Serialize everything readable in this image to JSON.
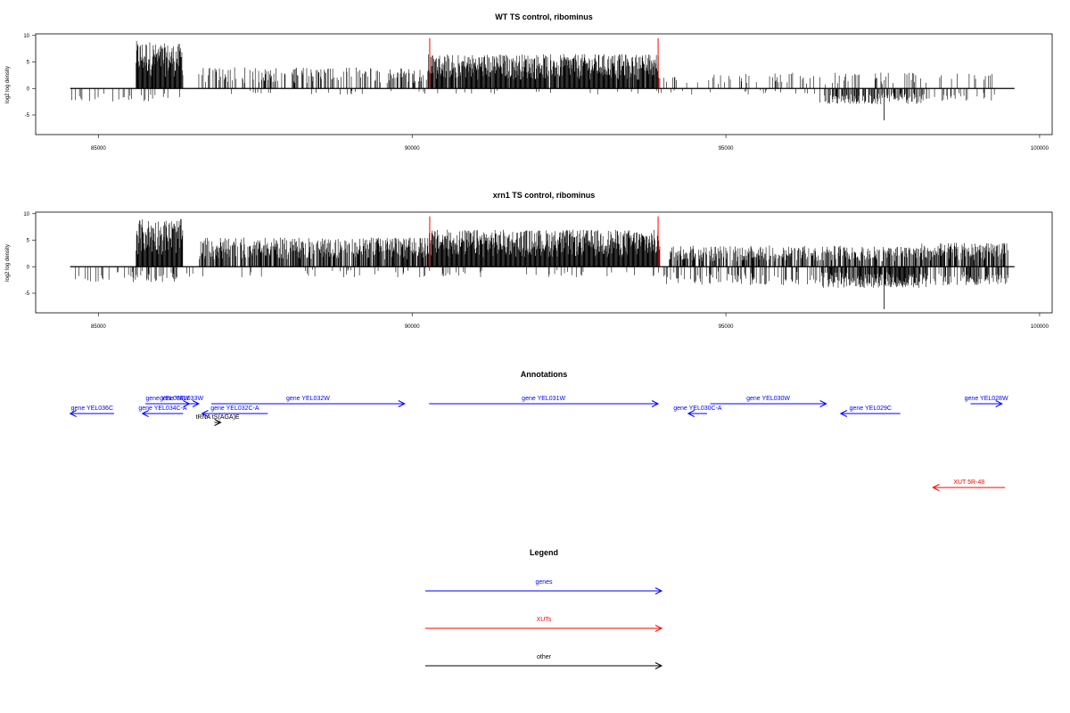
{
  "chart_data": [
    {
      "type": "bar",
      "title": "WT TS control, ribominus",
      "ylabel": "log2 log density",
      "xlim": [
        84000,
        100200
      ],
      "ylim": [
        -8.7,
        10.3
      ],
      "x_ticks": [
        85000,
        90000,
        95000,
        100000
      ],
      "x_tick_labels": [
        "85000",
        "90000",
        "95000",
        "100000"
      ],
      "y_ticks": [
        -5,
        0,
        5,
        10
      ],
      "y_tick_labels": [
        "-5",
        "0",
        "5",
        "10"
      ],
      "baseline": {
        "from": 84550,
        "to": 99600,
        "value": 0
      },
      "marker_lines": {
        "color": "#ff0000",
        "x": [
          90280,
          93920
        ],
        "ymax": 9.5
      },
      "series": [
        {
          "values_plus": [
            {
              "from": 85600,
              "to": 85900,
              "max": 9.0,
              "density": 1.0
            },
            {
              "from": 85900,
              "to": 86350,
              "max": 8.5,
              "density": 1.0
            },
            {
              "from": 86600,
              "to": 90250,
              "max": 4.0,
              "density": 0.35
            },
            {
              "from": 90250,
              "to": 93950,
              "max": 6.5,
              "density": 0.95
            },
            {
              "from": 94000,
              "to": 99300,
              "max": 3.0,
              "density": 0.12
            }
          ],
          "values_minus": [
            {
              "from": 84550,
              "to": 86300,
              "max": 2.5,
              "density": 0.12
            },
            {
              "from": 87000,
              "to": 96500,
              "max": 1.2,
              "density": 0.05
            },
            {
              "from": 96500,
              "to": 98200,
              "max": 3.0,
              "density": 0.55
            },
            {
              "from": 98200,
              "to": 99300,
              "max": 2.5,
              "density": 0.18
            }
          ],
          "peak_values": [
            {
              "x": 97520,
              "y": -6.0
            }
          ]
        }
      ]
    },
    {
      "type": "bar",
      "title": "xrn1 TS control, ribominus",
      "ylabel": "log2 log density",
      "xlim": [
        84000,
        100200
      ],
      "ylim": [
        -8.7,
        10.3
      ],
      "x_ticks": [
        85000,
        90000,
        95000,
        100000
      ],
      "x_tick_labels": [
        "85000",
        "90000",
        "95000",
        "100000"
      ],
      "y_ticks": [
        -5,
        0,
        5,
        10
      ],
      "y_tick_labels": [
        "-5",
        "0",
        "5",
        "10"
      ],
      "baseline": {
        "from": 84550,
        "to": 99600,
        "value": 0
      },
      "marker_lines": {
        "color": "#ff0000",
        "x": [
          90280,
          93920
        ],
        "ymax": 9.5
      },
      "series": [
        {
          "values_plus": [
            {
              "from": 85600,
              "to": 86350,
              "max": 9.0,
              "density": 1.0
            },
            {
              "from": 86600,
              "to": 90250,
              "max": 5.5,
              "density": 0.75
            },
            {
              "from": 90250,
              "to": 93950,
              "max": 7.0,
              "density": 1.0
            },
            {
              "from": 94100,
              "to": 98100,
              "max": 4.0,
              "density": 0.6
            },
            {
              "from": 98100,
              "to": 99500,
              "max": 4.5,
              "density": 0.75
            }
          ],
          "values_minus": [
            {
              "from": 84550,
              "to": 86300,
              "max": 3.0,
              "density": 0.2
            },
            {
              "from": 86300,
              "to": 94000,
              "max": 2.0,
              "density": 0.05
            },
            {
              "from": 94000,
              "to": 96500,
              "max": 3.5,
              "density": 0.25
            },
            {
              "from": 96500,
              "to": 98200,
              "max": 4.0,
              "density": 0.85
            },
            {
              "from": 98200,
              "to": 99500,
              "max": 3.5,
              "density": 0.4
            }
          ],
          "peak_values": [
            {
              "x": 97520,
              "y": -8.0
            }
          ]
        }
      ]
    }
  ],
  "annotations": {
    "title": "Annotations",
    "colors": {
      "gene": "#0000ff",
      "xut": "#ff0000",
      "other": "#000000"
    },
    "features": [
      {
        "label": "gene YEL036C",
        "kind": "gene",
        "strand": "-",
        "row": 2,
        "start": 84550,
        "end": 85250
      },
      {
        "label": "gene YEL034C-A",
        "kind": "gene",
        "strand": "-",
        "row": 2,
        "start": 85700,
        "end": 86350
      },
      {
        "label": "gene YEL034W",
        "kind": "gene",
        "strand": "+",
        "row": 1,
        "start": 85750,
        "end": 86450
      },
      {
        "label": "gene YEL033W",
        "kind": "gene",
        "strand": "+",
        "row": 1,
        "start": 86050,
        "end": 86600
      },
      {
        "label": "gene YEL032C-A",
        "kind": "gene",
        "strand": "-",
        "row": 2,
        "start": 86650,
        "end": 87700
      },
      {
        "label": "tRNA tS(AGA)E",
        "kind": "other",
        "strand": "+",
        "row": 3,
        "start": 86850,
        "end": 86950
      },
      {
        "label": "gene YEL032W",
        "kind": "gene",
        "strand": "+",
        "row": 1,
        "start": 86800,
        "end": 89880
      },
      {
        "label": "gene YEL031W",
        "kind": "gene",
        "strand": "+",
        "row": 1,
        "start": 90270,
        "end": 93920
      },
      {
        "label": "gene YEL030C-A",
        "kind": "gene",
        "strand": "-",
        "row": 2,
        "start": 94400,
        "end": 94700
      },
      {
        "label": "gene YEL030W",
        "kind": "gene",
        "strand": "+",
        "row": 1,
        "start": 94750,
        "end": 96600
      },
      {
        "label": "gene YEL029C",
        "kind": "gene",
        "strand": "-",
        "row": 2,
        "start": 96830,
        "end": 97780
      },
      {
        "label": "gene YEL028W",
        "kind": "gene",
        "strand": "+",
        "row": 1,
        "start": 98900,
        "end": 99400
      },
      {
        "label": "XUT 5R-48",
        "kind": "xut",
        "strand": "-",
        "row": 4,
        "start": 98300,
        "end": 99450
      }
    ]
  },
  "legend": {
    "title": "Legend",
    "items": [
      {
        "label": "genes",
        "color": "#0000ff"
      },
      {
        "label": "XUTs",
        "color": "#ff0000"
      },
      {
        "label": "other",
        "color": "#000000"
      }
    ]
  }
}
